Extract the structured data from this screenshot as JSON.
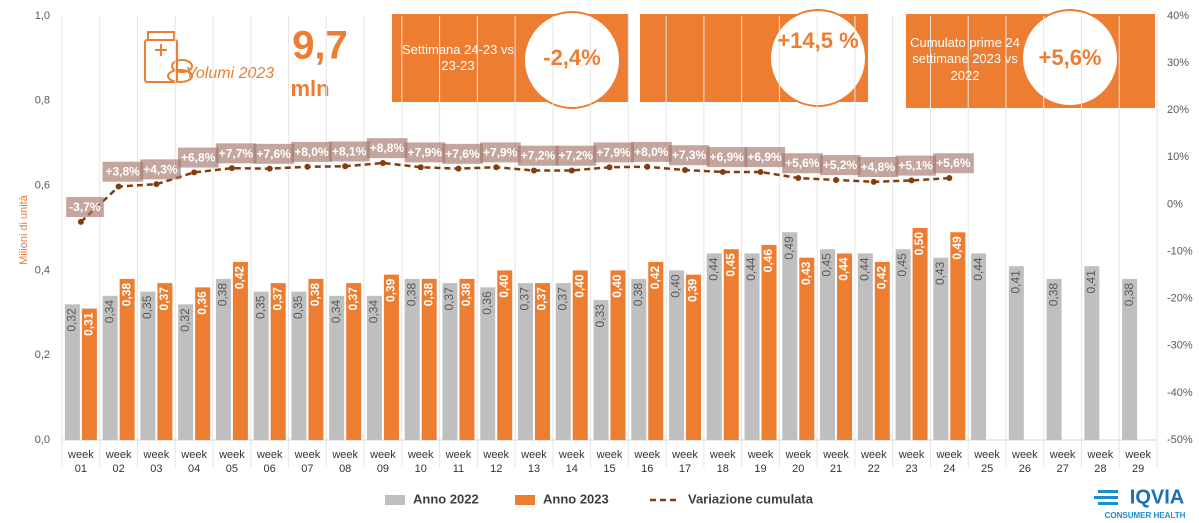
{
  "chart_data": {
    "type": "bar",
    "y_label": "Milioni di unità",
    "categories": [
      "week 01",
      "week 02",
      "week 03",
      "week 04",
      "week 05",
      "week 06",
      "week 07",
      "week 08",
      "week 09",
      "week 10",
      "week 11",
      "week 12",
      "week 13",
      "week 14",
      "week 15",
      "week 16",
      "week 17",
      "week 18",
      "week 19",
      "week 20",
      "week 21",
      "week 22",
      "week 23",
      "week 24",
      "week 25",
      "week 26",
      "week 27",
      "week 28",
      "week 29"
    ],
    "series": [
      {
        "name": "Anno 2022",
        "color": "#bfbfbf",
        "type": "bar",
        "values": [
          0.32,
          0.34,
          0.35,
          0.32,
          0.38,
          0.35,
          0.35,
          0.34,
          0.34,
          0.38,
          0.37,
          0.36,
          0.37,
          0.37,
          0.33,
          0.38,
          0.4,
          0.44,
          0.44,
          0.49,
          0.45,
          0.44,
          0.45,
          0.43,
          0.44,
          0.41,
          0.38,
          0.41,
          0.38
        ],
        "value_labels": [
          "0,32",
          "0,34",
          "0,35",
          "0,32",
          "0,38",
          "0,35",
          "0,35",
          "0,34",
          "0,34",
          "0,38",
          "0,37",
          "0,36",
          "0,37",
          "0,37",
          "0,33",
          "0,38",
          "0,40",
          "0,44",
          "0,44",
          "0,49",
          "0,45",
          "0,44",
          "0,45",
          "0,43",
          "0,44",
          "0,41",
          "0,38",
          "0,41",
          "0,38"
        ]
      },
      {
        "name": "Anno 2023",
        "color": "#ed7d31",
        "type": "bar",
        "values": [
          0.31,
          0.38,
          0.37,
          0.36,
          0.42,
          0.37,
          0.38,
          0.37,
          0.39,
          0.38,
          0.38,
          0.4,
          0.37,
          0.4,
          0.4,
          0.42,
          0.39,
          0.45,
          0.46,
          0.43,
          0.44,
          0.42,
          0.5,
          0.49,
          null,
          null,
          null,
          null,
          null
        ],
        "value_labels": [
          "0,31",
          "0,38",
          "0,37",
          "0,36",
          "0,42",
          "0,37",
          "0,38",
          "0,37",
          "0,39",
          "0,38",
          "0,38",
          "0,40",
          "0,37",
          "0,40",
          "0,40",
          "0,42",
          "0,39",
          "0,45",
          "0,46",
          "0,43",
          "0,44",
          "0,42",
          "0,50",
          "0,49",
          null,
          null,
          null,
          null,
          null
        ]
      },
      {
        "name": "Variazione cumulata",
        "color": "#843c0c",
        "type": "line",
        "axis": "y2",
        "values": [
          -3.7,
          3.8,
          4.3,
          6.8,
          7.7,
          7.6,
          8.0,
          8.1,
          8.8,
          7.9,
          7.6,
          7.9,
          7.2,
          7.2,
          7.9,
          8.0,
          7.3,
          6.9,
          6.9,
          5.6,
          5.2,
          4.8,
          5.1,
          5.6,
          null,
          null,
          null,
          null,
          null
        ],
        "value_labels": [
          "-3,7%",
          "+3,8%",
          "+4,3%",
          "+6,8%",
          "+7,7%",
          "+7,6%",
          "+8,0%",
          "+8,1%",
          "+8,8%",
          "+7,9%",
          "+7,6%",
          "+7,9%",
          "+7,2%",
          "+7,2%",
          "+7,9%",
          "+8,0%",
          "+7,3%",
          "+6,9%",
          "+6,9%",
          "+5,6%",
          "+5,2%",
          "+4,8%",
          "+5,1%",
          "+5,6%",
          null,
          null,
          null,
          null,
          null
        ]
      }
    ],
    "ylim": [
      0,
      1
    ],
    "yticks": [
      {
        "value": 0,
        "label": "0,0"
      },
      {
        "value": 0.2,
        "label": "0,2"
      },
      {
        "value": 0.4,
        "label": "0,4"
      },
      {
        "value": 0.6,
        "label": "0,6"
      },
      {
        "value": 0.8,
        "label": "0,8"
      },
      {
        "value": 1,
        "label": "1,0"
      }
    ],
    "y2lim": [
      -50,
      40
    ],
    "y2ticks": [
      {
        "value": -50,
        "label": "-50%"
      },
      {
        "value": -40,
        "label": "-40%"
      },
      {
        "value": -30,
        "label": "-30%"
      },
      {
        "value": -20,
        "label": "-20%"
      },
      {
        "value": -10,
        "label": "-10%"
      },
      {
        "value": 0,
        "label": "0%"
      },
      {
        "value": 10,
        "label": "10%"
      },
      {
        "value": 20,
        "label": "20%"
      },
      {
        "value": 30,
        "label": "30%"
      },
      {
        "value": 40,
        "label": "40%"
      }
    ],
    "legend": "bottom",
    "kpi": {
      "volume_label": "Volumi 2023",
      "volume_value": "9,7",
      "volume_unit": "mln",
      "boxes": [
        {
          "label": "Settimana 24-23 vs 23-23",
          "value": "-2,4%"
        },
        {
          "value": "+14,5 %"
        },
        {
          "label": "Cumulato prime 24 settimane 2023 vs 2022",
          "value": "+5,6%"
        }
      ]
    },
    "logo": {
      "name": "IQVIA",
      "subtitle": "CONSUMER HEALTH"
    }
  }
}
